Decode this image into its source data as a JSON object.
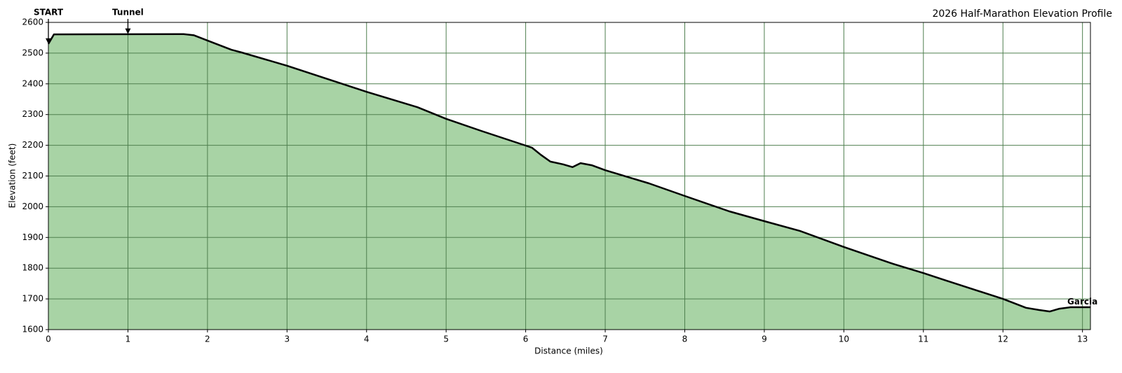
{
  "chart_data": {
    "type": "area",
    "title": "2026 Half-Marathon Elevation Profile",
    "x_label": "Distance (miles)",
    "y_label": "Elevation (feet)",
    "x": [
      0,
      0.07,
      1.7,
      1.83,
      2.0,
      2.3,
      2.43,
      3.0,
      4.0,
      4.64,
      5.0,
      5.44,
      6.0,
      6.08,
      6.19,
      6.31,
      6.47,
      6.59,
      6.69,
      6.83,
      7.0,
      7.55,
      8.0,
      8.56,
      9.0,
      9.45,
      10.0,
      10.62,
      11.0,
      11.26,
      12.0,
      12.29,
      12.45,
      12.59,
      12.71,
      12.85,
      13.1
    ],
    "values": [
      2530,
      2561,
      2562,
      2558,
      2541,
      2511,
      2502,
      2459,
      2374,
      2324,
      2286,
      2247,
      2199,
      2192,
      2169,
      2147,
      2138,
      2129,
      2142,
      2135,
      2119,
      2076,
      2035,
      1985,
      1953,
      1921,
      1869,
      1814,
      1784,
      1762,
      1700,
      1671,
      1664,
      1659,
      1668,
      1673,
      1673
    ],
    "fill_color": "#a8d3a5",
    "line_color": "#000000",
    "grid_color": "#4f7f4f",
    "xlim": [
      0,
      13.1
    ],
    "ylim": [
      1600,
      2600
    ],
    "xticks": [
      0,
      1,
      2,
      3,
      4,
      5,
      6,
      7,
      8,
      9,
      10,
      11,
      12,
      13
    ],
    "yticks": [
      1600,
      1700,
      1800,
      1900,
      2000,
      2100,
      2200,
      2300,
      2400,
      2500,
      2600
    ],
    "grid": true,
    "annotations": [
      {
        "text": "START",
        "x": 0,
        "y": 2530,
        "arrow": true
      },
      {
        "text": "Tunnel",
        "x": 1,
        "y": 2562,
        "arrow": true
      },
      {
        "text": "Garcia",
        "x": 13,
        "y": 1690,
        "arrow": false
      }
    ]
  }
}
